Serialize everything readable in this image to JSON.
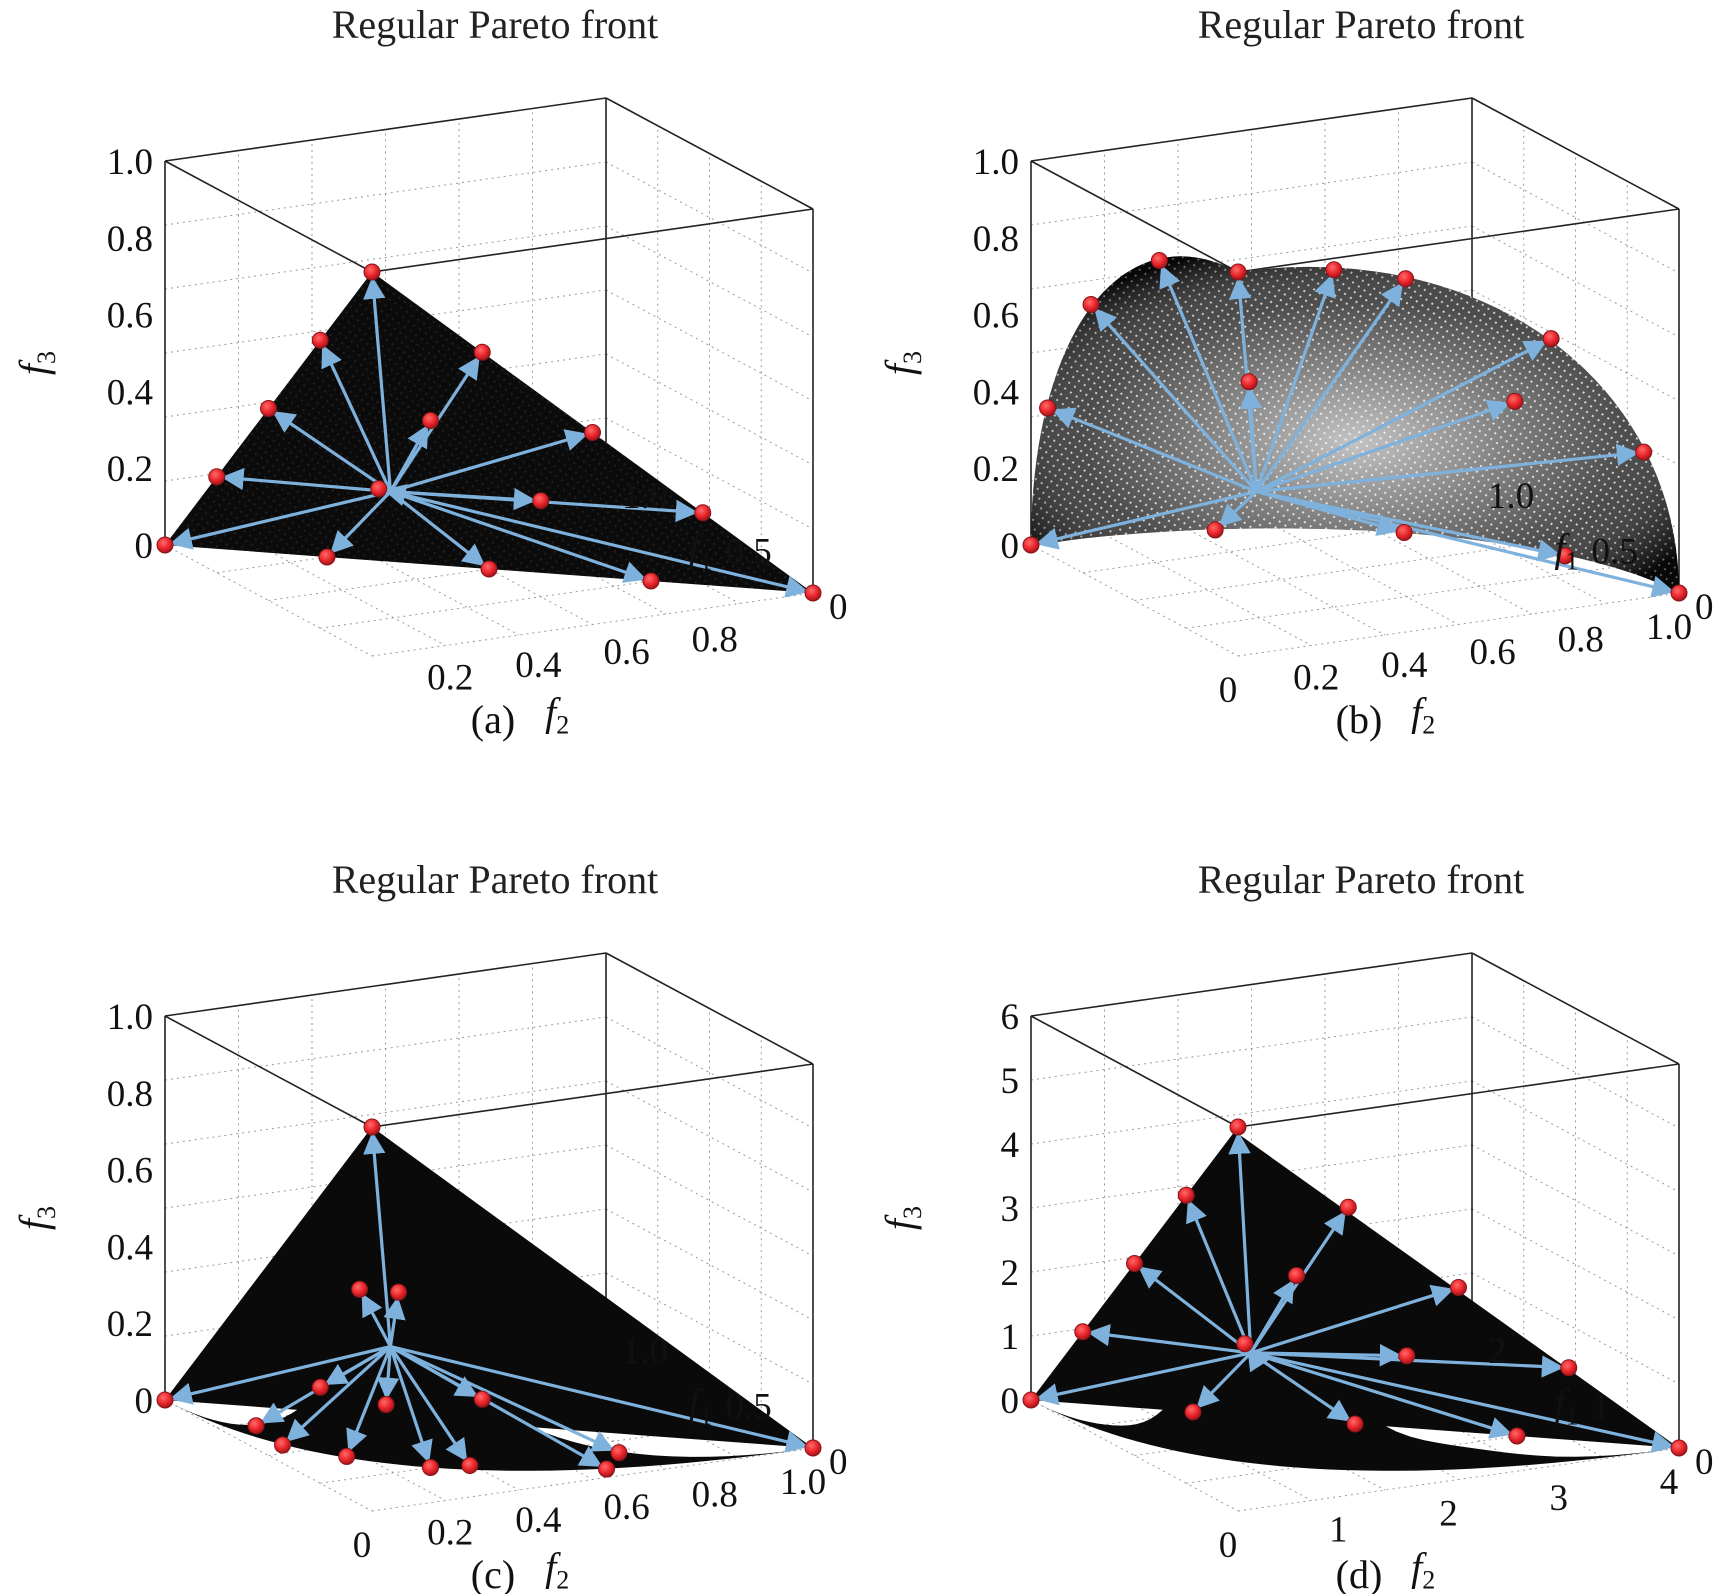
{
  "colors": {
    "front": "#000000",
    "vector": "#7eb2dd",
    "point": "#e8252b",
    "point_edge": "#8a1418"
  },
  "chart_data": [
    {
      "type": "scatter",
      "panel": "a",
      "title": "Regular Pareto front",
      "caption": "(a)",
      "shape": "linear",
      "xlabel": "f",
      "xlabel_sub": "2",
      "ylabel": "f",
      "ylabel_sub": "3",
      "zlabel": "f",
      "zlabel_sub": "1",
      "f2_ticks": [
        "0.2",
        "0.4",
        "0.6",
        "0.8"
      ],
      "f3_ticks": [
        "0",
        "0.2",
        "0.4",
        "0.6",
        "0.8",
        "1.0"
      ],
      "f1_ticks": [
        "0",
        "0.5",
        "1.0"
      ],
      "f1_range": [
        0,
        1.0
      ],
      "f2_range": [
        0,
        1.0
      ],
      "f3_range": [
        0,
        1.0
      ],
      "ideal_point": [
        0,
        0,
        0
      ],
      "reference_points": [
        [
          1.0,
          0,
          0
        ],
        [
          0,
          1.0,
          0
        ],
        [
          0,
          0,
          1.0
        ],
        [
          0.75,
          0.25,
          0
        ],
        [
          0.5,
          0.5,
          0
        ],
        [
          0.25,
          0.75,
          0
        ],
        [
          0.75,
          0,
          0.25
        ],
        [
          0.5,
          0,
          0.5
        ],
        [
          0.25,
          0,
          0.75
        ],
        [
          0,
          0.75,
          0.25
        ],
        [
          0,
          0.5,
          0.5
        ],
        [
          0,
          0.25,
          0.75
        ],
        [
          0.5,
          0.25,
          0.25
        ],
        [
          0.25,
          0.5,
          0.25
        ],
        [
          0.25,
          0.25,
          0.5
        ]
      ]
    },
    {
      "type": "scatter",
      "panel": "b",
      "title": "Regular Pareto front",
      "caption": "(b)",
      "shape": "spherical",
      "xlabel": "f",
      "xlabel_sub": "2",
      "ylabel": "f",
      "ylabel_sub": "3",
      "zlabel": "f",
      "zlabel_sub": "1",
      "f2_ticks": [
        "0",
        "0.2",
        "0.4",
        "0.6",
        "0.8",
        "1.0"
      ],
      "f3_ticks": [
        "0",
        "0.2",
        "0.4",
        "0.6",
        "0.8",
        "1.0"
      ],
      "f1_ticks": [
        "0",
        "0.5",
        "1.0"
      ],
      "f1_range": [
        0,
        1.0
      ],
      "f2_range": [
        0,
        1.0
      ],
      "f3_range": [
        0,
        1.0
      ],
      "ideal_point": [
        0,
        0,
        0
      ],
      "reference_points": [
        [
          1.0,
          0,
          0
        ],
        [
          0,
          1.0,
          0
        ],
        [
          0,
          0,
          1.0
        ],
        [
          0.92,
          0.38,
          0
        ],
        [
          0.71,
          0.71,
          0
        ],
        [
          0.38,
          0.92,
          0
        ],
        [
          0.92,
          0,
          0.38
        ],
        [
          0.71,
          0,
          0.71
        ],
        [
          0.38,
          0,
          0.92
        ],
        [
          0,
          0.92,
          0.38
        ],
        [
          0,
          0.71,
          0.71
        ],
        [
          0,
          0.38,
          0.92
        ],
        [
          0.82,
          0.41,
          0.41
        ],
        [
          0.41,
          0.82,
          0.41
        ],
        [
          0.41,
          0.41,
          0.82
        ]
      ]
    },
    {
      "type": "scatter",
      "panel": "c",
      "title": "Regular Pareto front",
      "caption": "(c)",
      "shape": "concave",
      "xlabel": "f",
      "xlabel_sub": "2",
      "ylabel": "f",
      "ylabel_sub": "3",
      "zlabel": "f",
      "zlabel_sub": "1",
      "f2_ticks": [
        "0",
        "0.2",
        "0.4",
        "0.6",
        "0.8",
        "1.0"
      ],
      "f3_ticks": [
        "0",
        "0.2",
        "0.4",
        "0.6",
        "0.8",
        "1.0"
      ],
      "f1_ticks": [
        "0",
        "0.5",
        "1.0"
      ],
      "f1_range": [
        0,
        1.0
      ],
      "f2_range": [
        0,
        1.0
      ],
      "f3_range": [
        0,
        1.0
      ],
      "ideal_point": [
        0,
        0,
        0
      ],
      "reference_points": [
        [
          1.0,
          0,
          0
        ],
        [
          0,
          1.0,
          0
        ],
        [
          0,
          0,
          1.0
        ],
        [
          0.56,
          0.06,
          0
        ],
        [
          0.25,
          0.25,
          0
        ],
        [
          0.06,
          0.56,
          0
        ],
        [
          0.56,
          0,
          0.06
        ],
        [
          0.25,
          0,
          0.25
        ],
        [
          0.06,
          0,
          0.56
        ],
        [
          0,
          0.56,
          0.06
        ],
        [
          0,
          0.25,
          0.25
        ],
        [
          0,
          0.06,
          0.56
        ],
        [
          0.25,
          0.06,
          0.06
        ],
        [
          0.06,
          0.25,
          0.06
        ],
        [
          0.06,
          0.06,
          0.25
        ]
      ]
    },
    {
      "type": "scatter",
      "panel": "d",
      "title": "Regular Pareto front",
      "caption": "(d)",
      "shape": "scaled-wavy",
      "xlabel": "f",
      "xlabel_sub": "2",
      "ylabel": "f",
      "ylabel_sub": "3",
      "zlabel": "f",
      "zlabel_sub": "1",
      "f2_ticks": [
        "0",
        "1",
        "2",
        "3",
        "4"
      ],
      "f3_ticks": [
        "0",
        "1",
        "2",
        "3",
        "4",
        "5",
        "6"
      ],
      "f1_ticks": [
        "0",
        "1",
        "2"
      ],
      "f1_range": [
        0,
        2
      ],
      "f2_range": [
        0,
        4
      ],
      "f3_range": [
        0,
        6
      ],
      "ideal_point": [
        0,
        0,
        0
      ],
      "reference_points": [
        [
          2.0,
          0,
          0
        ],
        [
          0,
          4.0,
          0
        ],
        [
          0,
          0,
          6.0
        ],
        [
          1.5,
          1.0,
          0
        ],
        [
          1.0,
          2.0,
          0
        ],
        [
          0.5,
          3.0,
          0
        ],
        [
          1.5,
          0,
          1.5
        ],
        [
          1.0,
          0,
          3.0
        ],
        [
          0.5,
          0,
          4.5
        ],
        [
          0,
          3.0,
          1.5
        ],
        [
          0,
          2.0,
          3.0
        ],
        [
          0,
          1.0,
          4.5
        ],
        [
          1.0,
          1.0,
          1.5
        ],
        [
          0.5,
          2.0,
          1.5
        ],
        [
          0.5,
          1.0,
          3.0
        ]
      ]
    }
  ]
}
